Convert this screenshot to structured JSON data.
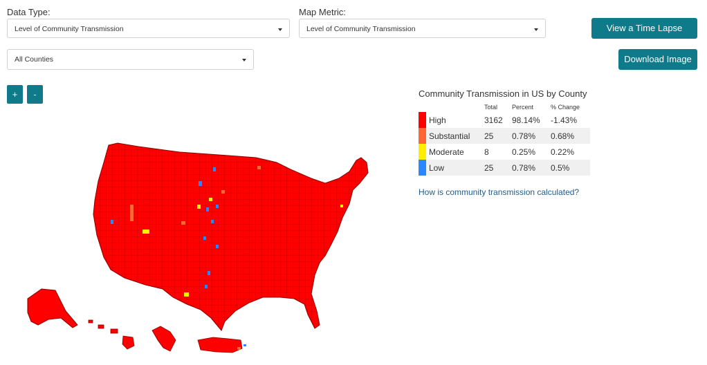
{
  "filters": {
    "data_type": {
      "label": "Data Type:",
      "value": "Level of Community Transmission"
    },
    "map_metric": {
      "label": "Map Metric:",
      "value": "Level of Community Transmission"
    },
    "county": {
      "value": "All Counties"
    }
  },
  "buttons": {
    "time_lapse": "View a Time Lapse",
    "download": "Download Image",
    "zoom_in": "+",
    "zoom_out": "-"
  },
  "legend": {
    "title": "Community Transmission in US by County",
    "columns": {
      "total": "Total",
      "percent": "Percent",
      "change": "% Change"
    },
    "rows": [
      {
        "label": "High",
        "total": "3162",
        "percent": "98.14%",
        "change": "-1.43%",
        "color": "#ff0000"
      },
      {
        "label": "Substantial",
        "total": "25",
        "percent": "0.78%",
        "change": "0.68%",
        "color": "#ff6633"
      },
      {
        "label": "Moderate",
        "total": "8",
        "percent": "0.25%",
        "change": "0.22%",
        "color": "#ffee00"
      },
      {
        "label": "Low",
        "total": "25",
        "percent": "0.78%",
        "change": "0.5%",
        "color": "#2b86ff"
      }
    ],
    "link": "How is community transmission calculated?"
  },
  "map": {
    "region_labels": [
      "contiguous-us",
      "alaska",
      "hawaii",
      "guam",
      "puerto-rico"
    ],
    "colors": {
      "high": "#ff0000",
      "border": "#8b0000",
      "substantial": "#ff6633",
      "moderate": "#ffee00",
      "low": "#2b86ff"
    }
  }
}
